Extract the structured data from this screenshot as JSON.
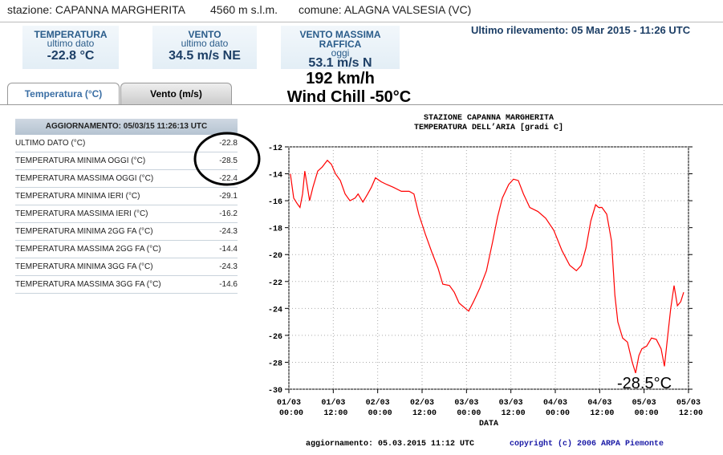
{
  "header": {
    "station": "stazione: CAPANNA MARGHERITA",
    "altitude": "4560 m s.l.m.",
    "municipality": "comune: ALAGNA VALSESIA (VC)",
    "last_reading": "Ultimo rilevamento: 05 Mar 2015 - 11:26 UTC"
  },
  "cards": [
    {
      "title": "TEMPERATURA",
      "subtitle": "ultimo dato",
      "value": "-22.8 °C"
    },
    {
      "title": "VENTO",
      "subtitle": "ultimo dato",
      "value": "34.5 m/s NE"
    },
    {
      "title": "VENTO MASSIMA RAFFICA",
      "subtitle": "oggi",
      "value": "53.1 m/s N"
    }
  ],
  "tabs": [
    "Temperatura (°C)",
    "Vento (m/s)"
  ],
  "annotations": [
    "192 km/h",
    "Wind Chill -50°C",
    "-28.5°C"
  ],
  "table": {
    "header": "AGGIORNAMENTO: 05/03/15 11:26:13 UTC",
    "rows": [
      [
        "ULTIMO DATO (°C)",
        -22.8
      ],
      [
        "TEMPERATURA MINIMA OGGI (°C)",
        -28.5
      ],
      [
        "TEMPERATURA MASSIMA OGGI (°C)",
        -22.4
      ],
      [
        "TEMPERATURA MINIMA IERI (°C)",
        -29.1
      ],
      [
        "TEMPERATURA MASSIMA IERI (°C)",
        -16.2
      ],
      [
        "TEMPERATURA MINIMA 2GG FA (°C)",
        -24.3
      ],
      [
        "TEMPERATURA MASSIMA 2GG FA (°C)",
        -14.4
      ],
      [
        "TEMPERATURA MINIMA 3GG FA (°C)",
        -24.3
      ],
      [
        "TEMPERATURA MASSIMA 3GG FA (°C)",
        -14.6
      ]
    ]
  },
  "chart_data": {
    "type": "line",
    "title": "STAZIONE CAPANNA MARGHERITA",
    "subtitle": "TEMPERATURA DELL’ARIA [gradi C]",
    "x_label": "DATA",
    "update_note": "aggiornamento: 05.03.2015 11:12 UTC",
    "copyright": "copyright (c) 2006 ARPA Piemonte",
    "xlim": [
      0,
      108
    ],
    "ylim": [
      -30,
      -12
    ],
    "grid": true,
    "xticks": [
      {
        "value": 0,
        "label": "01/03 00:00"
      },
      {
        "value": 12,
        "label": "01/03 12:00"
      },
      {
        "value": 24,
        "label": "02/03 00:00"
      },
      {
        "value": 36,
        "label": "02/03 12:00"
      },
      {
        "value": 48,
        "label": "03/03 00:00"
      },
      {
        "value": 60,
        "label": "03/03 12:00"
      },
      {
        "value": 72,
        "label": "04/03 00:00"
      },
      {
        "value": 84,
        "label": "04/03 12:00"
      },
      {
        "value": 96,
        "label": "05/03 00:00"
      },
      {
        "value": 108,
        "label": "05/03 12:00"
      }
    ],
    "yticks": [
      -30,
      -28,
      -26,
      -24,
      -22,
      -20,
      -18,
      -16,
      -14,
      -12
    ],
    "series": [
      {
        "name": "Temperatura",
        "color": "#ff0000",
        "x": [
          0.4,
          1.3,
          2.2,
          3.0,
          3.7,
          4.3,
          4.9,
          5.6,
          6.5,
          7.8,
          9.0,
          10.4,
          11.5,
          12.6,
          13.9,
          15.2,
          16.5,
          17.9,
          18.7,
          20.0,
          21.3,
          22.3,
          23.4,
          25.0,
          26.5,
          28.2,
          30.4,
          32.5,
          33.8,
          35.1,
          36.9,
          38.6,
          40.3,
          41.6,
          43.4,
          44.7,
          46.0,
          47.7,
          48.6,
          49.9,
          51.6,
          53.4,
          55.1,
          56.4,
          57.7,
          59.4,
          60.7,
          62.0,
          63.4,
          65.1,
          67.3,
          69.4,
          71.6,
          73.8,
          75.9,
          77.7,
          79.0,
          80.3,
          81.6,
          82.9,
          83.7,
          84.6,
          85.9,
          87.2,
          88.1,
          88.9,
          90.2,
          91.5,
          92.8,
          93.7,
          94.6,
          95.4,
          96.7,
          98.0,
          99.3,
          100.6,
          101.5,
          102.4,
          103.2,
          104.1,
          105.0,
          105.9,
          106.7
        ],
        "values": [
          -14.0,
          -15.8,
          -16.2,
          -16.5,
          -15.5,
          -13.8,
          -14.8,
          -16.0,
          -15.0,
          -13.8,
          -13.5,
          -13.0,
          -13.3,
          -14.0,
          -14.5,
          -15.5,
          -16.0,
          -15.8,
          -15.5,
          -16.1,
          -15.5,
          -15.0,
          -14.3,
          -14.6,
          -14.8,
          -15.0,
          -15.3,
          -15.3,
          -15.5,
          -17.0,
          -18.5,
          -19.8,
          -21.0,
          -22.2,
          -22.3,
          -22.8,
          -23.6,
          -24.0,
          -24.2,
          -23.5,
          -22.5,
          -21.2,
          -19.0,
          -17.2,
          -15.8,
          -14.8,
          -14.4,
          -14.5,
          -15.5,
          -16.5,
          -16.8,
          -17.3,
          -18.2,
          -19.7,
          -20.8,
          -21.2,
          -20.8,
          -19.5,
          -17.5,
          -16.3,
          -16.5,
          -16.5,
          -17.0,
          -19.0,
          -23.0,
          -25.0,
          -26.2,
          -26.5,
          -28.0,
          -28.8,
          -27.5,
          -27.0,
          -26.8,
          -26.2,
          -26.3,
          -27.0,
          -28.3,
          -26.0,
          -24.0,
          -22.3,
          -23.8,
          -23.5,
          -22.8
        ]
      }
    ]
  }
}
